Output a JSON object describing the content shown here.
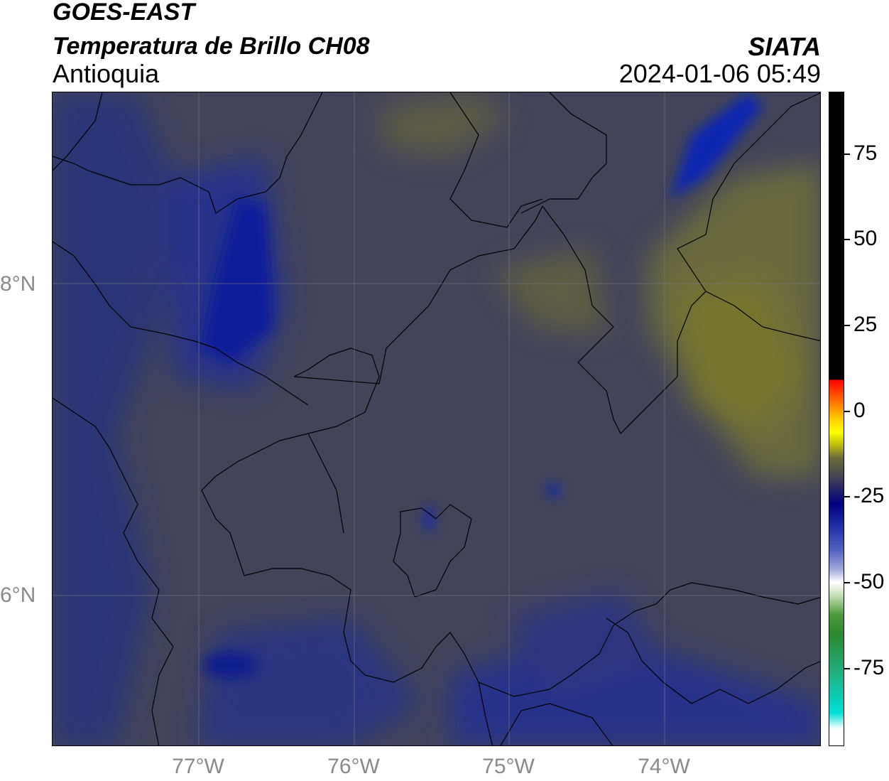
{
  "header": {
    "satellite": "GOES-EAST",
    "product": "Temperatura de Brillo CH08",
    "region": "Antioquia",
    "agency": "SIATA",
    "timestamp": "2024-01-06 05:49"
  },
  "map": {
    "longitude_labels": [
      "77°W",
      "76°W",
      "75°W",
      "74°W"
    ],
    "latitude_labels": [
      "8°N",
      "6°N"
    ],
    "gridlines": true
  },
  "colorbar": {
    "tick_labels": [
      "75",
      "50",
      "25",
      "0",
      "-25",
      "-50",
      "-75"
    ],
    "colors": {
      "warm_top": "#000000",
      "red": "#ff0000",
      "yellow": "#ffff00",
      "gray_olive": "#414153",
      "navy": "#000080",
      "white": "#ffffff",
      "green": "#2c8a30",
      "cyan": "#00e0d8"
    }
  }
}
